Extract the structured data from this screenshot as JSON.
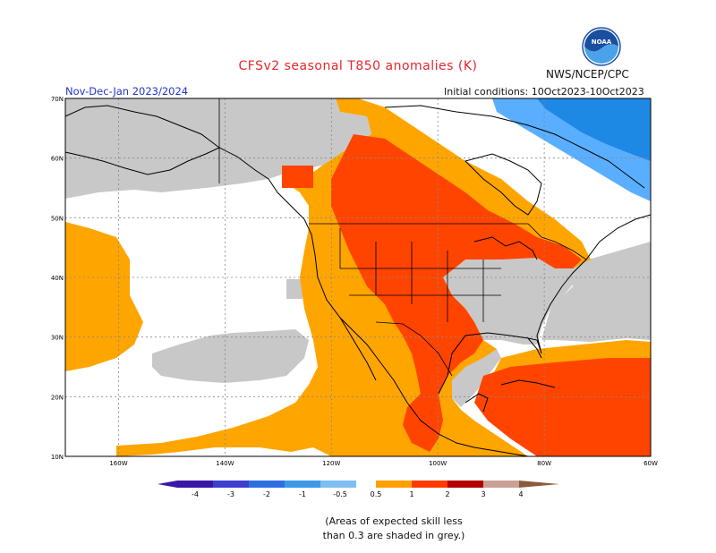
{
  "header": {
    "title": "CFSv2 seasonal T850 anomalies (K)",
    "agency": "NWS/NCEP/CPC",
    "season": "Nov-Dec-Jan 2023/2024",
    "initial_conditions": "Initial conditions: 10Oct2023-10Oct2023",
    "logo_text": "NOAA"
  },
  "map": {
    "region": "North America",
    "lat_labels": [
      "70N",
      "60N",
      "50N",
      "40N",
      "30N",
      "20N",
      "10N"
    ],
    "lat_values": [
      70,
      60,
      50,
      40,
      30,
      20,
      10
    ],
    "lon_labels": [
      "160W",
      "140W",
      "120W",
      "100W",
      "80W",
      "60W"
    ],
    "lon_values": [
      -160,
      -140,
      -120,
      -100,
      -80,
      -60
    ],
    "lon_range": [
      -170,
      -60
    ],
    "lat_range": [
      10,
      70
    ],
    "grid": true,
    "colors": {
      "no_skill": "#c8c8c8",
      "neutral": "#ffffff",
      "pos_0_5_1": "#ffa500",
      "pos_1_2": "#ff4400",
      "neg_1_2": "#1e88e5",
      "neg_0_5_1": "#5aaeff",
      "coast": "#000000"
    }
  },
  "legend": {
    "labels": [
      "-4",
      "-3",
      "-2",
      "-1",
      "-0.5",
      "0.5",
      "1",
      "2",
      "3",
      "4"
    ],
    "colors": [
      "#3a16a6",
      "#3d3fd1",
      "#2f6ee0",
      "#3d99e8",
      "#7ebef2",
      "#ffffff",
      "#ffa000",
      "#ff3a00",
      "#b40000",
      "#c9a195",
      "#8b5a3c"
    ]
  },
  "footer": {
    "caption_line1": "(Areas of expected skill less",
    "caption_line2": "than 0.3 are shaded in grey.)"
  }
}
